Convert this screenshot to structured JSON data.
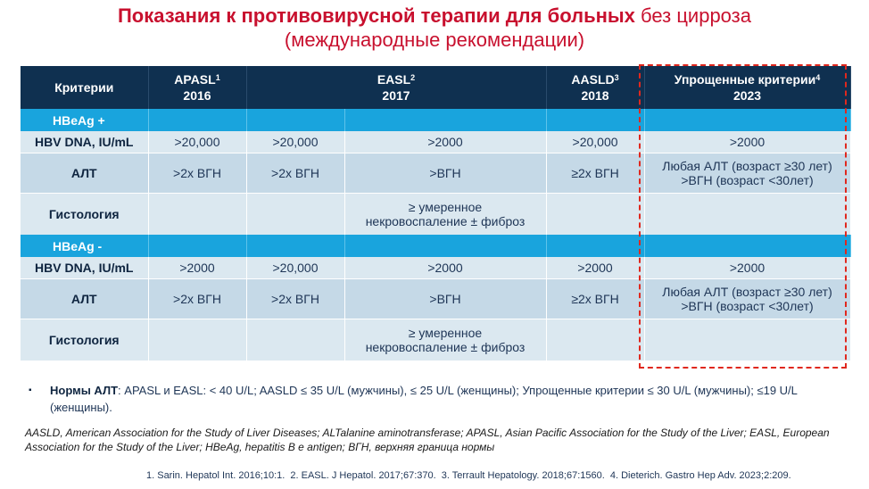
{
  "title": {
    "line1_bold": "Показания к противовирусной терапии для больных",
    "line1_rest": " без цирроза",
    "line2": "(международные рекомендации)"
  },
  "header": {
    "criteria": "Критерии",
    "apasl": "APASL",
    "apasl_sup": "1",
    "apasl_year": "2016",
    "easl": "EASL",
    "easl_sup": "2",
    "easl_year": "2017",
    "aasld": "AASLD",
    "aasld_sup": "3",
    "aasld_year": "2018",
    "simple": "Упрощенные критерии",
    "simple_sup": "4",
    "simple_year": "2023"
  },
  "sections": [
    {
      "label": "HBeAg +",
      "dna": {
        "label": "HBV DNA, IU/mL",
        "apasl": ">20,000",
        "easl_a": ">20,000",
        "easl_b": ">2000",
        "aasld": ">20,000",
        "simple": ">2000"
      },
      "alt": {
        "label": "АЛТ",
        "apasl": ">2x ВГН",
        "easl_a": ">2x ВГН",
        "easl_b": ">ВГН",
        "aasld": "≥2x ВГН",
        "simple_1": "Любая АЛТ (возраст ≥30 лет)",
        "simple_2": ">ВГН (возраст <30лет)"
      },
      "histo": {
        "label": "Гистология",
        "text_1": "≥ умеренное",
        "text_2": "некровоспаление  ± фиброз"
      }
    },
    {
      "label": "HBeAg -",
      "dna": {
        "label": "HBV DNA, IU/mL",
        "apasl": ">2000",
        "easl_a": ">20,000",
        "easl_b": ">2000",
        "aasld": ">2000",
        "simple": ">2000"
      },
      "alt": {
        "label": "АЛТ",
        "apasl": ">2x ВГН",
        "easl_a": ">2x ВГН",
        "easl_b": ">ВГН",
        "aasld": "≥2x ВГН",
        "simple_1": "Любая АЛТ (возраст ≥30 лет)",
        "simple_2": ">ВГН (возраст <30лет)"
      },
      "histo": {
        "label": "Гистология",
        "text_1": "≥ умеренное",
        "text_2": "некровоспаление  ± фиброз"
      }
    }
  ],
  "norms": {
    "bullet": "▪",
    "label": "Нормы АЛТ",
    "text": ": APASL  и EASL: < 40 U/L; AASLD ≤ 35 U/L (мужчины), ≤ 25 U/L (женщины); Упрощенные критерии ≤ 30 U/L (мужчины); ≤19 U/L (женщины)."
  },
  "abbreviations": "AASLD, American Association for the Study of Liver Diseases; ALTalanine aminotransferase; APASL, Asian Pacific Association for the Study of the Liver; EASL, European Association for the Study of the Liver; HBeAg, hepatitis B e antigen; ВГН, верхняя граница нормы",
  "references": [
    "1. Sarin. Hepatol Int. 2016;10:1.",
    "2. EASL. J Hepatol. 2017;67:370.",
    "3. Terrault Hepatology. 2018;67:1560.",
    "4. Dieterich. Gastro Hep Adv. 2023;2:209."
  ],
  "colors": {
    "title_red": "#c8102e",
    "header_navy": "#0f3050",
    "section_blue": "#19a4dd",
    "row_light": "#dbe8f0",
    "row_mid": "#c5d9e7",
    "highlight_dash": "#e0281e"
  }
}
